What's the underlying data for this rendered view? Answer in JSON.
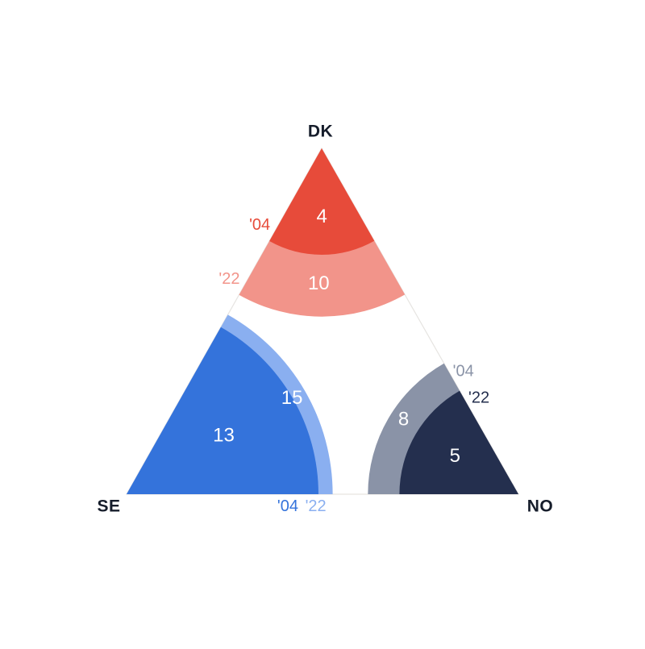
{
  "chart_data": {
    "type": "pie",
    "variant": "triangle-corner-sectors",
    "description": "Triangle with a circular fan anchored at each corner; sector radius is proportional to the square root of the value. Each corner shows two overlaid sectors for years '04 and '22.",
    "title": "",
    "legend_position": "none",
    "background_color": "#ffffff",
    "triangle_outline_color": "#e6e4e1",
    "corner_label_color": "#161d2b",
    "value_label_color": "#ffffff",
    "radius_scale_px_per_sqrt_unit": 66,
    "corners": [
      {
        "corner": "top",
        "label": "DK",
        "series": [
          {
            "year": "'04",
            "value": 4,
            "color": "#e74b3a"
          },
          {
            "year": "'22",
            "value": 10,
            "color": "#f2948a"
          }
        ]
      },
      {
        "corner": "bottom-left",
        "label": "SE",
        "series": [
          {
            "year": "'04",
            "value": 13,
            "color": "#3473db"
          },
          {
            "year": "'22",
            "value": 15,
            "color": "#8aaff0"
          }
        ]
      },
      {
        "corner": "bottom-right",
        "label": "NO",
        "series": [
          {
            "year": "'04",
            "value": 8,
            "color": "#8a93a7"
          },
          {
            "year": "'22",
            "value": 5,
            "color": "#242f4e"
          }
        ]
      }
    ]
  }
}
